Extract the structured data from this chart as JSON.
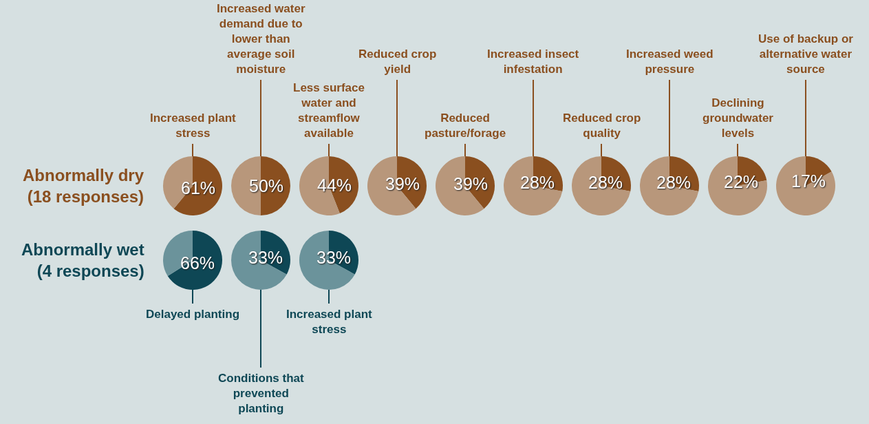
{
  "chart_data": [
    {
      "type": "other",
      "title": "Abnormally dry (18 responses)"
    },
    {
      "type": "pie",
      "title": "Increased plant stress",
      "categories": [
        null,
        null
      ],
      "values": [
        61,
        39
      ],
      "colors": [
        "#8a4f1f",
        "#b8977b"
      ],
      "value_labels": [
        "61%",
        null
      ]
    },
    {
      "type": "pie",
      "title": "Increased water demand due to lower than average soil moisture",
      "categories": [
        null,
        null
      ],
      "values": [
        50,
        50
      ],
      "colors": [
        "#8a4f1f",
        "#b8977b"
      ],
      "value_labels": [
        "50%",
        null
      ]
    },
    {
      "type": "pie",
      "title": "Less surface water and streamflow available",
      "categories": [
        null,
        null
      ],
      "values": [
        44,
        56
      ],
      "colors": [
        "#8a4f1f",
        "#b8977b"
      ],
      "value_labels": [
        "44%",
        null
      ]
    },
    {
      "type": "pie",
      "title": "Reduced crop yield",
      "categories": [
        null,
        null
      ],
      "values": [
        39,
        61
      ],
      "colors": [
        "#8a4f1f",
        "#b8977b"
      ],
      "value_labels": [
        "39%",
        null
      ]
    },
    {
      "type": "pie",
      "title": "Reduced pasture/forage",
      "categories": [
        null,
        null
      ],
      "values": [
        39,
        61
      ],
      "colors": [
        "#8a4f1f",
        "#b8977b"
      ],
      "value_labels": [
        "39%",
        null
      ]
    },
    {
      "type": "pie",
      "title": "Increased insect infestation",
      "categories": [
        null,
        null
      ],
      "values": [
        28,
        72
      ],
      "colors": [
        "#8a4f1f",
        "#b8977b"
      ],
      "value_labels": [
        "28%",
        null
      ]
    },
    {
      "type": "pie",
      "title": "Reduced crop quality",
      "categories": [
        null,
        null
      ],
      "values": [
        28,
        72
      ],
      "colors": [
        "#8a4f1f",
        "#b8977b"
      ],
      "value_labels": [
        "28%",
        null
      ]
    },
    {
      "type": "pie",
      "title": "Increased weed pressure",
      "categories": [
        null,
        null
      ],
      "values": [
        28,
        72
      ],
      "colors": [
        "#8a4f1f",
        "#b8977b"
      ],
      "value_labels": [
        "28%",
        null
      ]
    },
    {
      "type": "pie",
      "title": "Declining groundwater levels",
      "categories": [
        null,
        null
      ],
      "values": [
        22,
        78
      ],
      "colors": [
        "#8a4f1f",
        "#b8977b"
      ],
      "value_labels": [
        "22%",
        null
      ]
    },
    {
      "type": "pie",
      "title": "Use of backup or alternative water source",
      "categories": [
        null,
        null
      ],
      "values": [
        17,
        83
      ],
      "colors": [
        "#8a4f1f",
        "#b8977b"
      ],
      "value_labels": [
        "17%",
        null
      ]
    },
    {
      "type": "other",
      "title": "Abnormally wet (4 responses)"
    },
    {
      "type": "pie",
      "title": "Delayed planting",
      "categories": [
        null,
        null
      ],
      "values": [
        66,
        34
      ],
      "colors": [
        "#0e4755",
        "#6b939b"
      ],
      "value_labels": [
        "66%",
        null
      ]
    },
    {
      "type": "pie",
      "title": "Conditions that prevented planting",
      "categories": [
        null,
        null
      ],
      "values": [
        33,
        67
      ],
      "colors": [
        "#0e4755",
        "#6b939b"
      ],
      "value_labels": [
        "33%",
        null
      ]
    },
    {
      "type": "pie",
      "title": "Increased plant stress",
      "categories": [
        null,
        null
      ],
      "values": [
        33,
        67
      ],
      "colors": [
        "#0e4755",
        "#6b939b"
      ],
      "value_labels": [
        "33%",
        null
      ]
    }
  ]
}
